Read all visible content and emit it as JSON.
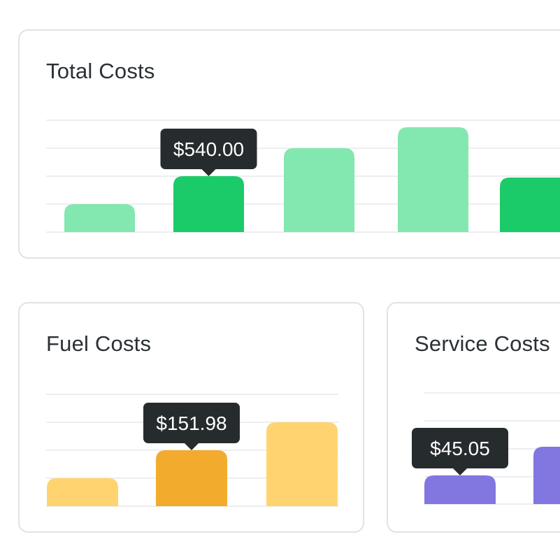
{
  "charts": [
    {
      "id": "total",
      "title": "Total Costs",
      "chart_data": {
        "type": "bar",
        "title": "Total Costs",
        "categories": [
          "",
          "",
          "",
          "",
          ""
        ],
        "values": [
          10,
          20,
          30,
          37.5,
          19.5
        ],
        "highlight_index": 1,
        "tooltip_label": "$540.00",
        "grid": true,
        "colors": {
          "base": "#83e7b0",
          "highlight": "#1bcb69"
        }
      }
    },
    {
      "id": "fuel",
      "title": "Fuel Costs",
      "chart_data": {
        "type": "bar",
        "title": "Fuel Costs",
        "categories": [
          "",
          "",
          ""
        ],
        "values": [
          10,
          20,
          30
        ],
        "highlight_index": 1,
        "tooltip_label": "$151.98",
        "grid": true,
        "colors": {
          "base": "#ffd470",
          "highlight": "#f2ab2c"
        }
      }
    },
    {
      "id": "service",
      "title": "Service Costs",
      "chart_data": {
        "type": "bar",
        "title": "Service Costs",
        "categories": [
          "",
          ""
        ],
        "values": [
          10,
          20
        ],
        "highlight_index": 0,
        "tooltip_label": "$45.05",
        "grid": true,
        "colors": {
          "base": "#a8a0ea",
          "highlight": "#8276e0",
          "alt": "#8276e0"
        }
      }
    }
  ],
  "tooltip_colors": {
    "background": "#262b2d",
    "text": "#ffffff"
  }
}
